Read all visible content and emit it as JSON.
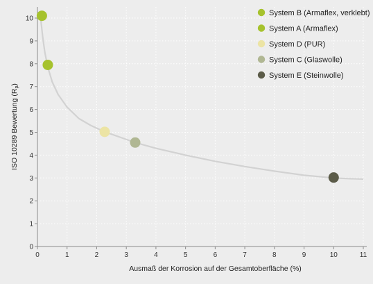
{
  "chart_data": {
    "type": "scatter",
    "xlabel": "Ausmaß der Korrosion auf der Gesamtoberfläche (%)",
    "ylabel_main": "ISO 10289 Bewertung (R",
    "ylabel_sub": "p",
    "ylabel_end": ")",
    "xlim": [
      0,
      11
    ],
    "ylim": [
      0,
      10
    ],
    "x_ticks": [
      "0",
      "1",
      "2",
      "3",
      "4",
      "5",
      "6",
      "7",
      "8",
      "9",
      "10",
      "11"
    ],
    "y_ticks": [
      "0",
      "1",
      "2",
      "3",
      "4",
      "5",
      "6",
      "7",
      "8",
      "9",
      "10"
    ],
    "grid": true,
    "legend_position": "top-right",
    "trend_curve": {
      "x": [
        0.1,
        0.18,
        0.25,
        0.35,
        0.5,
        0.7,
        1.0,
        1.4,
        1.8,
        2.27,
        2.8,
        3.3,
        4.0,
        5.0,
        6.0,
        7.0,
        8.0,
        9.0,
        10.0,
        10.5,
        11.0
      ],
      "y": [
        10.1,
        9.15,
        8.5,
        7.85,
        7.2,
        6.65,
        6.1,
        5.6,
        5.3,
        5.02,
        4.78,
        4.55,
        4.3,
        4.0,
        3.73,
        3.5,
        3.3,
        3.12,
        3.0,
        2.97,
        2.95
      ]
    },
    "series": [
      {
        "name": "System B (Armaflex, verklebt)",
        "color": "#a6c22d",
        "x": 0.15,
        "y": 10.1
      },
      {
        "name": "System A (Armaflex)",
        "color": "#a6c22d",
        "x": 0.35,
        "y": 7.95
      },
      {
        "name": "System D (PUR)",
        "color": "#ece4a4",
        "x": 2.27,
        "y": 5.02
      },
      {
        "name": "System C (Glaswolle)",
        "color": "#b0b793",
        "x": 3.3,
        "y": 4.55
      },
      {
        "name": "System E (Steinwolle)",
        "color": "#5b5b48",
        "x": 10.0,
        "y": 3.02
      }
    ]
  }
}
